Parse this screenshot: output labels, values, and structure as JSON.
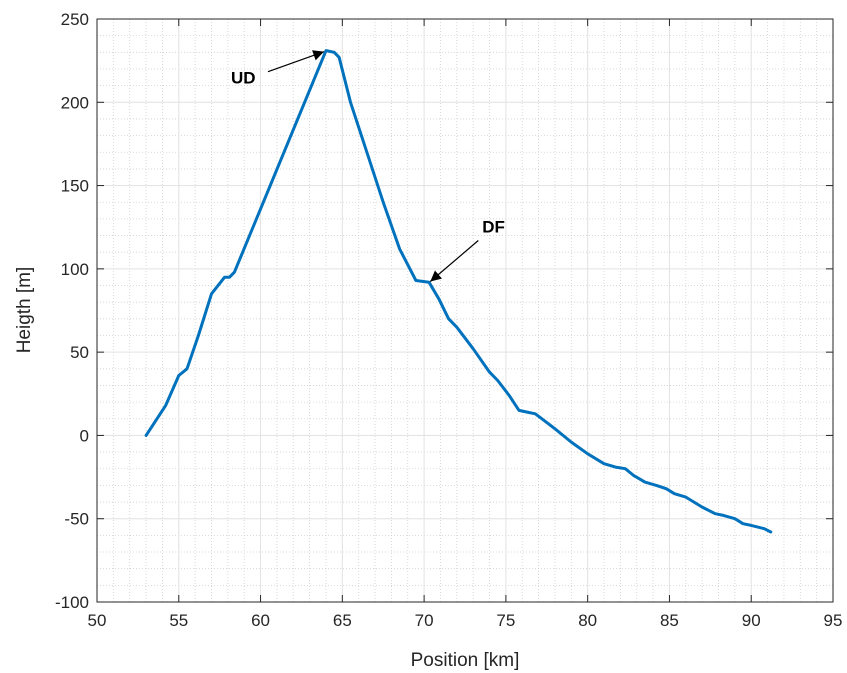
{
  "chart_data": {
    "type": "line",
    "title": "",
    "xlabel": "Position [km]",
    "ylabel": "Heigth [m]",
    "xlim": [
      50,
      95
    ],
    "ylim": [
      -100,
      250
    ],
    "xticks": [
      50,
      55,
      60,
      65,
      70,
      75,
      80,
      85,
      90,
      95
    ],
    "yticks": [
      -100,
      -50,
      0,
      50,
      100,
      150,
      200,
      250
    ],
    "grid": "on (major solid + minor dotted)",
    "line_color": "#0072BD",
    "series": [
      {
        "x": [
          53.0,
          54.2,
          55.0,
          55.5,
          56.2,
          57.0,
          57.8,
          58.1,
          58.4,
          64.0,
          64.5,
          64.8,
          65.5,
          66.5,
          67.5,
          68.5,
          69.5,
          70.3,
          70.9,
          71.5,
          72.0,
          73.0,
          74.0,
          74.5,
          75.2,
          75.8,
          76.3,
          76.8,
          77.2,
          78.0,
          79.0,
          80.0,
          81.0,
          81.7,
          82.3,
          82.8,
          83.5,
          84.2,
          84.8,
          85.3,
          86.0,
          87.0,
          87.8,
          88.3,
          89.0,
          89.5,
          90.0,
          90.8,
          91.2
        ],
        "y": [
          0,
          18,
          36,
          40,
          60,
          85,
          95,
          95,
          98,
          231,
          230,
          227,
          200,
          170,
          140,
          112,
          93,
          92,
          82,
          70,
          65,
          52,
          38,
          33,
          24,
          15,
          14,
          13,
          10,
          4,
          -4,
          -11,
          -17,
          -19,
          -20,
          -24,
          -28,
          -30,
          -32,
          -35,
          -37,
          -43,
          -47,
          -48,
          -50,
          -53,
          -54,
          -56,
          -58
        ]
      }
    ],
    "annotations": [
      {
        "text": "UD",
        "point": [
          64.0,
          231
        ]
      },
      {
        "text": "DF",
        "point": [
          70.5,
          93
        ]
      }
    ]
  }
}
